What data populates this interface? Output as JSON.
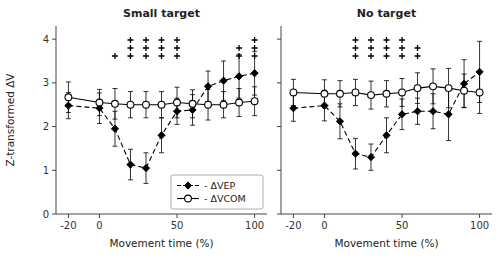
{
  "chart_data": [
    {
      "type": "line",
      "title": "Small target",
      "x_label": "Movement time (%)",
      "y_label": "Z-transformed ΔV",
      "x": [
        -20,
        0,
        10,
        20,
        30,
        40,
        50,
        60,
        70,
        80,
        90,
        100
      ],
      "xlim": [
        -28,
        108
      ],
      "xticks": [
        -20,
        0,
        50,
        100
      ],
      "ylim": [
        0,
        4.3
      ],
      "yticks": [
        0,
        1,
        2,
        3,
        4
      ],
      "grid": false,
      "legend": "lower right",
      "series": [
        {
          "name": "- ΔVEP",
          "color": "#000000",
          "marker": "diamond",
          "line_style": "dashed",
          "values": [
            2.48,
            2.42,
            1.95,
            1.13,
            1.05,
            1.8,
            2.35,
            2.38,
            2.92,
            3.05,
            3.15,
            3.22
          ],
          "errors": [
            0.3,
            0.35,
            0.4,
            0.35,
            0.35,
            0.4,
            0.3,
            0.35,
            0.35,
            0.45,
            0.5,
            0.5
          ]
        },
        {
          "name": "- ΔVCOM",
          "color": "#000000",
          "marker": "circle-open",
          "line_style": "solid",
          "values": [
            2.67,
            2.55,
            2.52,
            2.5,
            2.5,
            2.5,
            2.55,
            2.52,
            2.5,
            2.5,
            2.55,
            2.58
          ],
          "errors": [
            0.35,
            0.3,
            0.35,
            0.3,
            0.3,
            0.3,
            0.35,
            0.32,
            0.35,
            0.3,
            0.32,
            0.33
          ]
        }
      ],
      "significance": [
        {
          "x": 10,
          "level": 1
        },
        {
          "x": 20,
          "level": 3
        },
        {
          "x": 30,
          "level": 3
        },
        {
          "x": 40,
          "level": 3
        },
        {
          "x": 50,
          "level": 3
        },
        {
          "x": 90,
          "level": 2
        },
        {
          "x": 100,
          "level": 3
        }
      ]
    },
    {
      "type": "line",
      "title": "No target",
      "x_label": "Movement time (%)",
      "x": [
        -20,
        0,
        10,
        20,
        30,
        40,
        50,
        60,
        70,
        80,
        90,
        100
      ],
      "xlim": [
        -28,
        108
      ],
      "xticks": [
        -20,
        0,
        50,
        100
      ],
      "ylim": [
        0,
        4.3
      ],
      "yticks": [
        0,
        1,
        2,
        3,
        4
      ],
      "grid": false,
      "tick_labels": "x",
      "series": [
        {
          "color": "#000000",
          "marker": "diamond",
          "line_style": "dashed",
          "values": [
            2.42,
            2.48,
            2.12,
            1.38,
            1.3,
            1.8,
            2.28,
            2.35,
            2.35,
            2.28,
            2.98,
            3.25
          ],
          "errors": [
            0.3,
            0.35,
            0.4,
            0.35,
            0.3,
            0.4,
            0.35,
            0.3,
            0.4,
            0.6,
            0.55,
            0.7
          ]
        },
        {
          "color": "#000000",
          "marker": "circle-open",
          "line_style": "solid",
          "values": [
            2.78,
            2.75,
            2.75,
            2.78,
            2.72,
            2.75,
            2.78,
            2.88,
            2.92,
            2.88,
            2.82,
            2.78
          ],
          "errors": [
            0.3,
            0.32,
            0.3,
            0.3,
            0.32,
            0.3,
            0.32,
            0.35,
            0.4,
            0.45,
            0.38,
            0.48
          ]
        }
      ],
      "significance": [
        {
          "x": 20,
          "level": 3
        },
        {
          "x": 30,
          "level": 3
        },
        {
          "x": 40,
          "level": 3
        },
        {
          "x": 50,
          "level": 3
        },
        {
          "x": 60,
          "level": 2
        }
      ]
    }
  ]
}
